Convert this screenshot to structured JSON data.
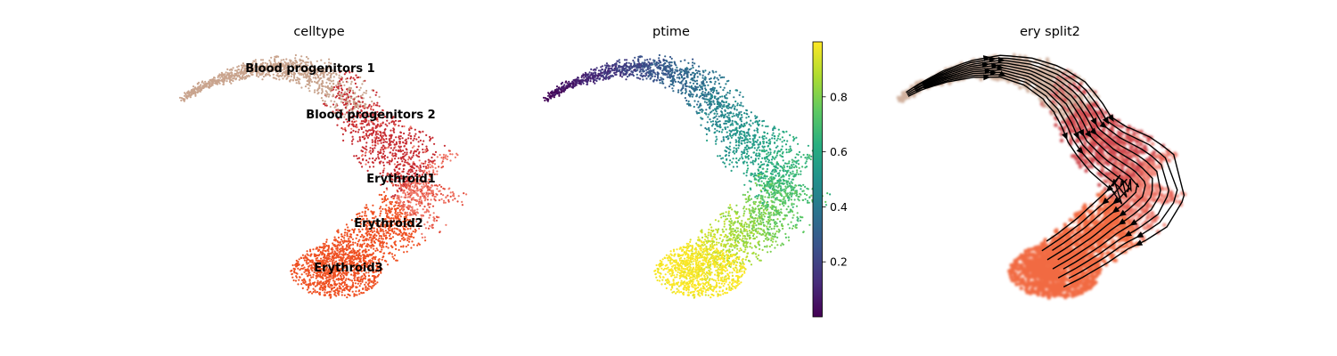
{
  "chart_data": [
    {
      "type": "scatter",
      "title": "celltype",
      "xlabel": "",
      "ylabel": "",
      "categories": [
        {
          "name": "Blood progenitors 1",
          "color": "#c9a48e",
          "label": "Blood progenitors 1"
        },
        {
          "name": "Blood progenitors 2",
          "color": "#c9a48e",
          "label": "Blood progenitors 2"
        },
        {
          "name": "Erythroid1",
          "color": "#c62a30",
          "label": "Erythroid1"
        },
        {
          "name": "Erythroid2",
          "color": "#ef7768",
          "label": "Erythroid2"
        },
        {
          "name": "Erythroid3",
          "color": "#ef5123",
          "label": "Erythroid3"
        }
      ]
    },
    {
      "type": "scatter",
      "title": "ptime",
      "xlabel": "",
      "ylabel": "",
      "colormap": "viridis",
      "colorbar": {
        "min": 0.0,
        "max": 1.0,
        "ticks": [
          0.2,
          0.4,
          0.6,
          0.8
        ]
      }
    },
    {
      "type": "scatter",
      "title": "ery split2",
      "xlabel": "",
      "ylabel": "",
      "overlay": "streamlines",
      "stream_color": "#000000"
    }
  ]
}
